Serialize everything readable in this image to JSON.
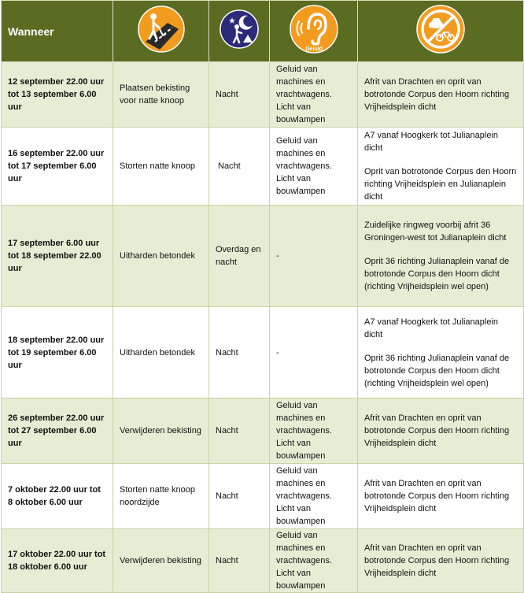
{
  "header": {
    "title": "Wanneer",
    "icons": [
      "road-work-icon",
      "night-work-icon",
      "noise-ear-icon",
      "no-traffic-icon"
    ],
    "noise_icon_label": "Geluid"
  },
  "colors": {
    "header_bg": "#5a6b22",
    "row_tint": "#e7edd5",
    "icon_orange": "#f39b1f",
    "icon_navy": "#2b2b7a"
  },
  "rows": [
    {
      "when": "12 september 22.00 uur tot 13 september 6.00 uur",
      "work": "Plaatsen bekisting voor natte knoop",
      "time": "Nacht",
      "noise": "Geluid van machines en vrachtwagens. Licht van bouwlampen",
      "closures": [
        "Afrit van Drachten en oprit van botrotonde Corpus den Hoorn richting Vrijheidsplein dicht"
      ]
    },
    {
      "when": "16 september 22.00 uur tot 17 september 6.00 uur",
      "work": "Storten natte knoop",
      "time": "Nacht",
      "noise": "Geluid van machines en vrachtwagens. Licht van bouwlampen",
      "closures": [
        "A7 vanaf Hoogkerk tot Julianaplein dicht",
        "Oprit van botrotonde Corpus den Hoorn richting Vrijheidsplein en Julianaplein dicht"
      ]
    },
    {
      "when": "17 september 6.00 uur tot 18 september 22.00 uur",
      "work": "Uitharden betondek",
      "time": "Overdag en nacht",
      "noise": "-",
      "closures": [
        "Zuidelijke ringweg voorbij afrit 36 Groningen-west tot Julianaplein dicht",
        "Oprit 36 richting Julianaplein vanaf de botrotonde Corpus den Hoorn dicht (richting Vrijheidsplein wel open)"
      ]
    },
    {
      "when": "18 september 22.00 uur tot 19 september 6.00 uur",
      "work": "Uitharden betondek",
      "time": "Nacht",
      "noise": "-",
      "closures": [
        "A7 vanaf Hoogkerk tot Julianaplein dicht",
        "Oprit 36 richting Julianaplein vanaf de botrotonde Corpus den Hoorn dicht (richting Vrijheidsplein wel open)"
      ]
    },
    {
      "when": "26 september 22.00 uur tot 27 september 6.00 uur",
      "work": "Verwijderen bekisting",
      "time": "Nacht",
      "noise": "Geluid van machines en vrachtwagens. Licht van bouwlampen",
      "closures": [
        "Afrit van Drachten en oprit van botrotonde Corpus den Hoorn richting Vrijheidsplein dicht"
      ]
    },
    {
      "when": "7 oktober 22.00 uur tot 8 oktober 6.00 uur",
      "work": "Storten natte knoop noordzijde",
      "time": "Nacht",
      "noise": "Geluid van machines en vrachtwagens. Licht van bouwlampen",
      "closures": [
        "Afrit van Drachten en oprit van botrotonde Corpus den Hoorn richting Vrijheidsplein dicht"
      ]
    },
    {
      "when": "17 oktober 22.00 uur tot 18 oktober 6.00 uur",
      "work": "Verwijderen bekisting",
      "time": "Nacht",
      "noise": "Geluid van machines en vrachtwagens. Licht van bouwlampen",
      "closures": [
        "Afrit van Drachten en oprit van botrotonde Corpus den Hoorn richting Vrijheidsplein dicht"
      ]
    }
  ]
}
